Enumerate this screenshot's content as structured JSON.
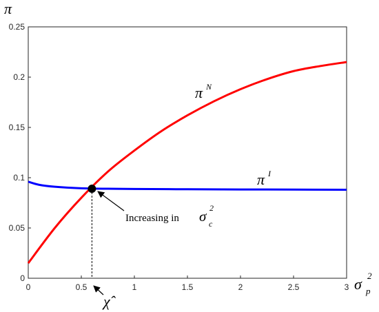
{
  "chart_data": {
    "type": "line",
    "xlabel": "σ",
    "xlabel_sub": "p",
    "xlabel_sup": "2",
    "ylabel": "π",
    "xlim": [
      0,
      3
    ],
    "ylim": [
      0,
      0.25
    ],
    "x_ticks": [
      "0",
      "0.5",
      "1",
      "1.5",
      "2",
      "2.5",
      "3"
    ],
    "y_ticks": [
      "0",
      "0.05",
      "0.1",
      "0.15",
      "0.2",
      "0.25"
    ],
    "grid": false,
    "series": [
      {
        "name": "π",
        "name_sup": "N",
        "color": "#ff0000",
        "x": [
          0,
          0.25,
          0.5,
          0.75,
          1.0,
          1.25,
          1.5,
          1.75,
          2.0,
          2.25,
          2.5,
          2.75,
          3.0
        ],
        "y": [
          0.015,
          0.05,
          0.08,
          0.106,
          0.127,
          0.146,
          0.162,
          0.176,
          0.188,
          0.198,
          0.206,
          0.211,
          0.215
        ]
      },
      {
        "name": "π",
        "name_sup": "I",
        "color": "#0000ff",
        "x": [
          0,
          0.1,
          0.25,
          0.5,
          0.75,
          1.0,
          1.5,
          2.0,
          2.5,
          3.0
        ],
        "y": [
          0.096,
          0.093,
          0.091,
          0.0895,
          0.089,
          0.0888,
          0.0885,
          0.0883,
          0.0882,
          0.088
        ]
      }
    ],
    "intersection": {
      "x": 0.6,
      "y": 0.089
    },
    "annotations": {
      "increasing_prefix": "Increasing in ",
      "increasing_sym": "σ",
      "increasing_sub": "c",
      "increasing_sup": "2",
      "chi_label": "χ̂"
    }
  }
}
